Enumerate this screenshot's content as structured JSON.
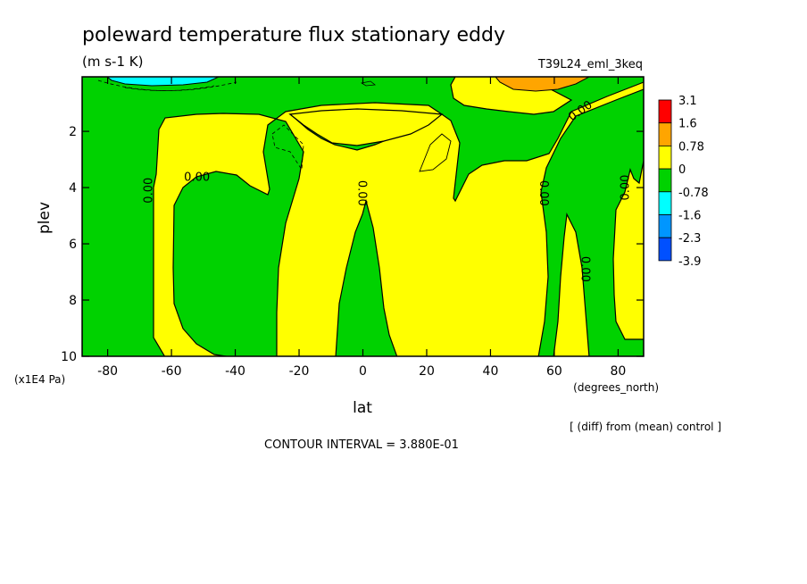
{
  "chart_data": {
    "type": "heatmap",
    "title": "poleward temperature flux stationary eddy",
    "subtitle": "(m s-1 K)",
    "run_label": "T39L24_eml_3keq",
    "xlabel": "lat",
    "xunit": "(degrees_north)",
    "ylabel": "plev",
    "yunit": "(x1E4 Pa)",
    "xlim": [
      -88,
      88
    ],
    "ylim": [
      10,
      0.06
    ],
    "x_ticks": [
      -80,
      -60,
      -40,
      -20,
      0,
      20,
      40,
      60,
      80
    ],
    "x_tick_labels": [
      "-80",
      "-60",
      "-40",
      "-20",
      "0",
      "20",
      "40",
      "60",
      "80"
    ],
    "y_ticks": [
      2,
      4,
      6,
      8,
      10
    ],
    "y_tick_labels": [
      "2",
      "4",
      "6",
      "8",
      "10"
    ],
    "legend": {
      "placement": "right",
      "labels": [
        "3.1",
        "1.6",
        "0.78",
        "0",
        "-0.78",
        "-1.6",
        "-2.3",
        "-3.9"
      ],
      "colors": [
        "#ff0000",
        "#ffa500",
        "#ffff00",
        "#00d200",
        "#00ffff",
        "#0096ff",
        "#0050ff"
      ]
    },
    "contour_labels": [
      {
        "text": "0.00",
        "x": -52,
        "y": 3.6,
        "rotate": 0
      },
      {
        "text": "0.00",
        "x": -67.5,
        "y": 4.1,
        "rotate": -90
      },
      {
        "text": "0.00",
        "x": 0,
        "y": 4.2,
        "rotate": 90
      },
      {
        "text": "0.00",
        "x": 57,
        "y": 4.2,
        "rotate": 90
      },
      {
        "text": "0.00",
        "x": 82,
        "y": 4.0,
        "rotate": -90
      },
      {
        "text": "0.00",
        "x": 70,
        "y": 6.9,
        "rotate": 90
      },
      {
        "text": "0.00",
        "x": 68,
        "y": 1.25,
        "rotate": -35
      }
    ],
    "footer_note": "[ (diff) from (mean) control ]",
    "contour_interval": "CONTOUR INTERVAL = 3.880E-01"
  }
}
